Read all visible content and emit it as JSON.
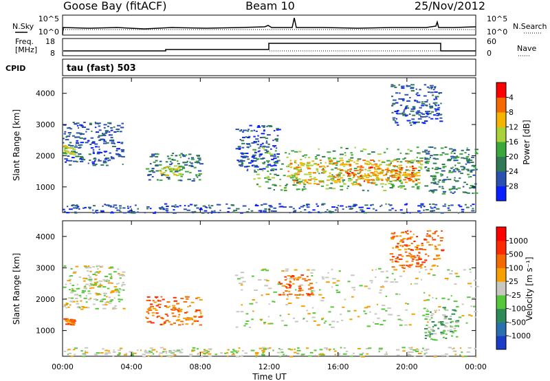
{
  "header": {
    "station": "Goose Bay (fitACF)",
    "beam": "Beam 10",
    "date": "25/Nov/2012"
  },
  "panels": {
    "noise": {
      "left_label": "N.Sky",
      "right_label": "N.Search",
      "left_ticks": [
        "10^5",
        "10^0"
      ],
      "right_ticks": [
        "10^5",
        "10^0"
      ]
    },
    "freq": {
      "left_label_1": "Freq.",
      "left_label_2": "[MHz]",
      "right_label": "Nave",
      "left_ticks": [
        "18",
        "8"
      ],
      "right_ticks": [
        "60",
        "0"
      ]
    },
    "cpid": {
      "label": "CPID",
      "value": "tau (fast) 503"
    }
  },
  "chart_data": [
    {
      "type": "heatmap",
      "name": "power-panel",
      "ylabel": "Slant Range [km]",
      "ylim": [
        180,
        4500
      ],
      "yticks": [
        "1000",
        "2000",
        "3000",
        "4000"
      ],
      "xlim": [
        0,
        24
      ],
      "xticks": [
        "00:00",
        "04:00",
        "08:00",
        "12:00",
        "16:00",
        "20:00",
        "00:00"
      ],
      "colorbar": {
        "label": "Power [dB]",
        "ticks": [
          "4",
          "8",
          "12",
          "16",
          "20",
          "24",
          "28"
        ],
        "colors": [
          "#0a1fff",
          "#2a50b0",
          "#2f7a55",
          "#3aa83a",
          "#a8d23a",
          "#f5b400",
          "#f56a00",
          "#ff0000"
        ]
      },
      "regions": [
        {
          "x0": 0.0,
          "x1": 3.5,
          "y0": 1700,
          "y1": 3100,
          "level": 1
        },
        {
          "x0": 0.0,
          "x1": 0.6,
          "y0": 2050,
          "y1": 2350,
          "level": 4
        },
        {
          "x0": 4.8,
          "x1": 8.0,
          "y0": 1200,
          "y1": 2100,
          "level": 2
        },
        {
          "x0": 5.5,
          "x1": 6.8,
          "y0": 1350,
          "y1": 1700,
          "level": 4
        },
        {
          "x0": 10.0,
          "x1": 12.5,
          "y0": 1500,
          "y1": 3000,
          "level": 1
        },
        {
          "x0": 11.0,
          "x1": 21.0,
          "y0": 900,
          "y1": 2300,
          "level": 3
        },
        {
          "x0": 13.0,
          "x1": 20.8,
          "y0": 1100,
          "y1": 1900,
          "level": 5
        },
        {
          "x0": 16.5,
          "x1": 20.5,
          "y0": 1200,
          "y1": 1700,
          "level": 6
        },
        {
          "x0": 19.0,
          "x1": 22.0,
          "y0": 3000,
          "y1": 4300,
          "level": 1
        },
        {
          "x0": 21.0,
          "x1": 24.0,
          "y0": 800,
          "y1": 2300,
          "level": 2
        },
        {
          "x0": 0.0,
          "x1": 24.0,
          "y0": 180,
          "y1": 480,
          "level": 1
        }
      ]
    },
    {
      "type": "heatmap",
      "name": "velocity-panel",
      "ylabel": "Slant Range [km]",
      "ylim": [
        180,
        4500
      ],
      "yticks": [
        "1000",
        "2000",
        "3000",
        "4000"
      ],
      "xlim": [
        0,
        24
      ],
      "xticks": [
        "00:00",
        "04:00",
        "08:00",
        "12:00",
        "16:00",
        "20:00",
        "00:00"
      ],
      "xlabel": "Time UT",
      "colorbar": {
        "label": "Velocity [m s⁻¹]",
        "ticks": [
          "1000",
          "500",
          "100",
          "25",
          "-25",
          "-100",
          "-500",
          "-1000"
        ],
        "colors": [
          "#1a3cc8",
          "#2a6fb0",
          "#2e8b57",
          "#55c83a",
          "#c8c8c0",
          "#f5a000",
          "#f56a00",
          "#ff2a00",
          "#ff0000"
        ]
      },
      "regions": [
        {
          "x0": 0.0,
          "x1": 3.5,
          "y0": 1700,
          "y1": 3100,
          "level": 4
        },
        {
          "x0": 0.0,
          "x1": 0.6,
          "y0": 1200,
          "y1": 1400,
          "level": 6
        },
        {
          "x0": 4.8,
          "x1": 8.0,
          "y0": 1200,
          "y1": 2100,
          "level": 6
        },
        {
          "x0": 10.0,
          "x1": 24.0,
          "y0": 1100,
          "y1": 3000,
          "level": 4
        },
        {
          "x0": 12.5,
          "x1": 14.5,
          "y0": 2100,
          "y1": 2800,
          "level": 6
        },
        {
          "x0": 21.0,
          "x1": 23.0,
          "y0": 700,
          "y1": 1800,
          "level": 3
        },
        {
          "x0": 19.0,
          "x1": 22.0,
          "y0": 3000,
          "y1": 4200,
          "level": 6
        },
        {
          "x0": 0.0,
          "x1": 24.0,
          "y0": 180,
          "y1": 480,
          "level": 4
        }
      ]
    }
  ]
}
